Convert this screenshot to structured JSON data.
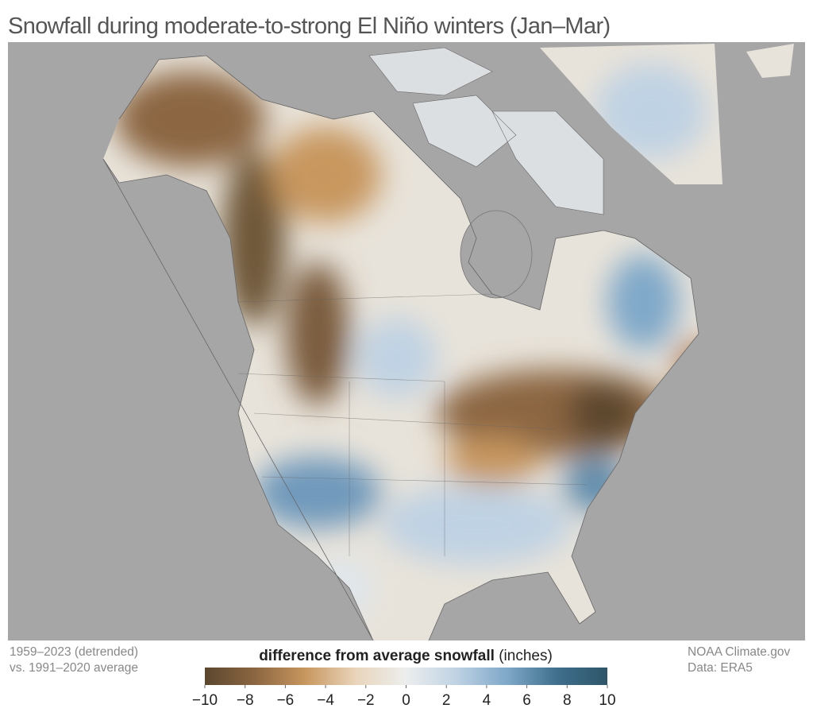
{
  "title": "Snowfall during moderate-to-strong El Niño winters (Jan–Mar)",
  "notes_left": [
    "1959–2023 (detrended)",
    "vs. 1991–2020 average"
  ],
  "notes_right": [
    "NOAA Climate.gov",
    "Data: ERA5"
  ],
  "legend": {
    "title": "difference from average snowfall",
    "unit": "(inches)",
    "range": [
      -10,
      10
    ],
    "colors": [
      "#5b472f",
      "#8c6642",
      "#c8975f",
      "#e9d5bb",
      "#eceeee",
      "#bfd2e3",
      "#7fa8c9",
      "#3f6f8d",
      "#2e5568"
    ],
    "ticks": [
      {
        "value": -10,
        "label": "−10"
      },
      {
        "value": -8,
        "label": "−8"
      },
      {
        "value": -6,
        "label": "−6"
      },
      {
        "value": -4,
        "label": "−4"
      },
      {
        "value": -2,
        "label": "−2"
      },
      0,
      2,
      4,
      6,
      8,
      10
    ]
  }
}
